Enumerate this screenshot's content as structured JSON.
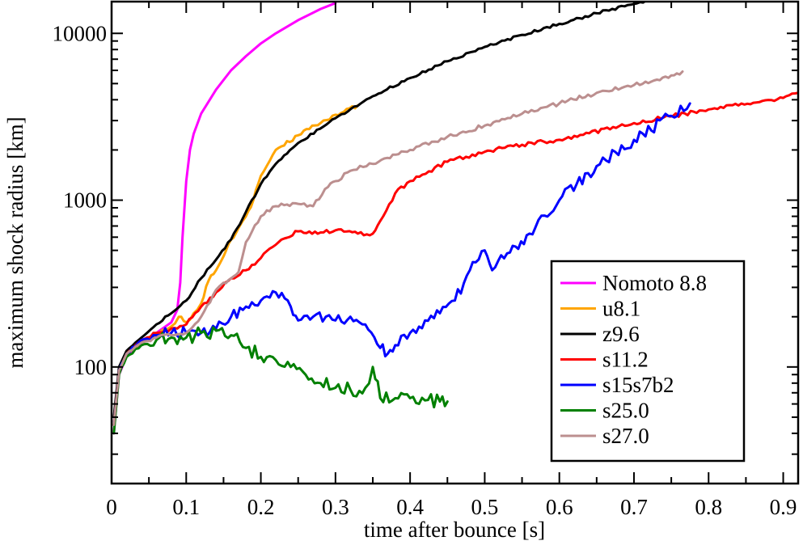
{
  "chart_data": {
    "type": "line",
    "title": "",
    "xlabel": "time after bounce [s]",
    "ylabel": "maximum shock radius [km]",
    "xlim": [
      0,
      0.92
    ],
    "ylim": [
      20,
      15500
    ],
    "yscale": "log",
    "xticks": [
      0,
      0.1,
      0.2,
      0.3,
      0.4,
      0.5,
      0.6,
      0.7,
      0.8,
      0.9
    ],
    "xtick_labels": [
      "0",
      "0.1",
      "0.2",
      "0.3",
      "0.4",
      "0.5",
      "0.6",
      "0.7",
      "0.8",
      "0.9"
    ],
    "yticks": [
      100,
      1000,
      10000
    ],
    "ytick_labels": [
      "100",
      "1000",
      "10000"
    ],
    "legend_position": "bottom-right",
    "series": [
      {
        "name": "Nomoto 8.8",
        "color": "#ff00ff",
        "x": [
          0.003,
          0.01,
          0.02,
          0.04,
          0.06,
          0.08,
          0.088,
          0.092,
          0.095,
          0.1,
          0.105,
          0.11,
          0.12,
          0.14,
          0.16,
          0.18,
          0.2,
          0.22,
          0.25,
          0.28,
          0.3
        ],
        "y": [
          40,
          90,
          115,
          140,
          160,
          185,
          220,
          320,
          600,
          1300,
          2000,
          2500,
          3300,
          4600,
          6000,
          7300,
          8700,
          10000,
          12000,
          14000,
          15200
        ]
      },
      {
        "name": "u8.1",
        "color": "#ffa500",
        "x": [
          0.003,
          0.01,
          0.02,
          0.04,
          0.06,
          0.08,
          0.09,
          0.1,
          0.11,
          0.12,
          0.13,
          0.14,
          0.15,
          0.16,
          0.17,
          0.18,
          0.19,
          0.2,
          0.22,
          0.25,
          0.28,
          0.3,
          0.33
        ],
        "y": [
          45,
          95,
          120,
          140,
          160,
          175,
          200,
          185,
          210,
          240,
          330,
          380,
          460,
          580,
          680,
          800,
          1000,
          1400,
          2000,
          2450,
          2900,
          3250,
          3700
        ]
      },
      {
        "name": "z9.6",
        "color": "#000000",
        "x": [
          0.003,
          0.01,
          0.02,
          0.04,
          0.06,
          0.08,
          0.1,
          0.12,
          0.14,
          0.16,
          0.18,
          0.2,
          0.22,
          0.25,
          0.3,
          0.35,
          0.4,
          0.45,
          0.5,
          0.55,
          0.6,
          0.65,
          0.7,
          0.72
        ],
        "y": [
          50,
          100,
          125,
          150,
          180,
          210,
          250,
          340,
          440,
          580,
          850,
          1250,
          1650,
          2200,
          3100,
          4200,
          5400,
          6800,
          8300,
          9800,
          11400,
          13200,
          15000,
          15600
        ]
      },
      {
        "name": "s11.2",
        "color": "#ff0000",
        "x": [
          0.003,
          0.01,
          0.02,
          0.04,
          0.06,
          0.08,
          0.1,
          0.12,
          0.14,
          0.16,
          0.18,
          0.2,
          0.22,
          0.25,
          0.28,
          0.3,
          0.33,
          0.35,
          0.36,
          0.38,
          0.4,
          0.45,
          0.5,
          0.55,
          0.6,
          0.7,
          0.8,
          0.9,
          0.92
        ],
        "y": [
          45,
          95,
          120,
          145,
          160,
          170,
          180,
          230,
          280,
          340,
          380,
          450,
          540,
          650,
          640,
          660,
          630,
          630,
          750,
          1100,
          1300,
          1700,
          1950,
          2150,
          2300,
          2900,
          3500,
          4100,
          4400
        ]
      },
      {
        "name": "s15s7b2",
        "color": "#0000ff",
        "x": [
          0.003,
          0.01,
          0.02,
          0.04,
          0.06,
          0.08,
          0.1,
          0.12,
          0.14,
          0.16,
          0.18,
          0.2,
          0.22,
          0.24,
          0.25,
          0.27,
          0.3,
          0.32,
          0.34,
          0.36,
          0.37,
          0.38,
          0.4,
          0.42,
          0.44,
          0.46,
          0.48,
          0.5,
          0.51,
          0.53,
          0.56,
          0.6,
          0.65,
          0.7,
          0.75,
          0.775
        ],
        "y": [
          45,
          95,
          120,
          145,
          155,
          160,
          160,
          160,
          170,
          200,
          230,
          250,
          280,
          230,
          190,
          200,
          190,
          200,
          180,
          130,
          120,
          135,
          160,
          190,
          210,
          250,
          380,
          500,
          380,
          480,
          630,
          1000,
          1600,
          2300,
          3200,
          3800
        ]
      },
      {
        "name": "s25.0",
        "color": "#008000",
        "x": [
          0.003,
          0.01,
          0.02,
          0.04,
          0.06,
          0.08,
          0.1,
          0.12,
          0.14,
          0.16,
          0.18,
          0.2,
          0.22,
          0.24,
          0.26,
          0.28,
          0.3,
          0.32,
          0.34,
          0.35,
          0.36,
          0.38,
          0.4,
          0.42,
          0.44,
          0.45
        ],
        "y": [
          40,
          90,
          115,
          135,
          145,
          150,
          150,
          160,
          165,
          155,
          130,
          115,
          110,
          100,
          90,
          80,
          75,
          73,
          75,
          100,
          65,
          65,
          65,
          63,
          62,
          62
        ]
      },
      {
        "name": "s27.0",
        "color": "#bc8f8f",
        "x": [
          0.003,
          0.01,
          0.02,
          0.04,
          0.06,
          0.08,
          0.1,
          0.12,
          0.14,
          0.15,
          0.16,
          0.17,
          0.18,
          0.2,
          0.22,
          0.25,
          0.27,
          0.29,
          0.3,
          0.32,
          0.35,
          0.4,
          0.45,
          0.5,
          0.55,
          0.6,
          0.65,
          0.7,
          0.75,
          0.765
        ],
        "y": [
          45,
          95,
          120,
          140,
          150,
          155,
          160,
          200,
          290,
          320,
          340,
          370,
          560,
          800,
          920,
          950,
          920,
          1200,
          1300,
          1500,
          1650,
          2000,
          2400,
          2800,
          3300,
          3800,
          4400,
          4900,
          5600,
          5900
        ]
      }
    ]
  }
}
